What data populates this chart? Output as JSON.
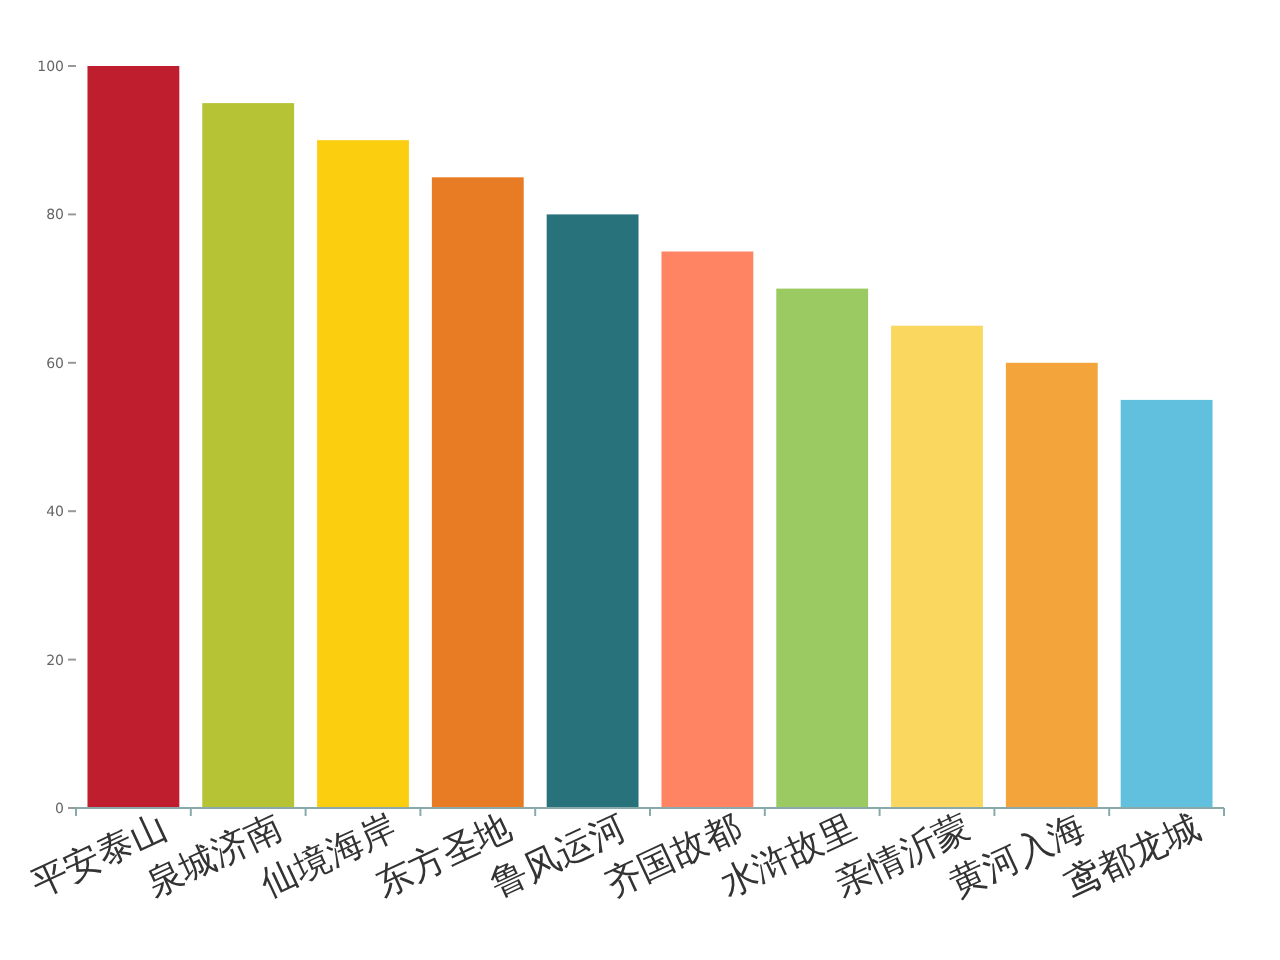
{
  "chart_data": {
    "type": "bar",
    "categories": [
      "平安泰山",
      "泉城济南",
      "仙境海岸",
      "东方圣地",
      "鲁风运河",
      "齐国故都",
      "水浒故里",
      "亲情沂蒙",
      "黄河入海",
      "鸢都龙城"
    ],
    "values": [
      100,
      95,
      90,
      85,
      80,
      75,
      70,
      65,
      60,
      55
    ],
    "colors": [
      "#be1e2d",
      "#b5c334",
      "#fcce10",
      "#e87c25",
      "#27727b",
      "#fe8463",
      "#9bca63",
      "#fad860",
      "#f3a43b",
      "#60c0dd"
    ],
    "ylim": [
      0,
      100
    ],
    "yticks": [
      0,
      20,
      40,
      60,
      80,
      100
    ],
    "grid": false
  }
}
